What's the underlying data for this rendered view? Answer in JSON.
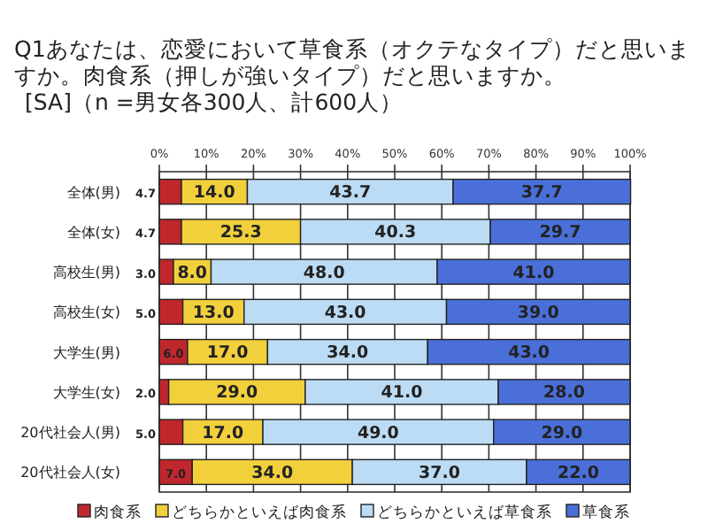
{
  "chart_data": {
    "type": "bar",
    "orientation": "horizontal",
    "stacked": true,
    "title": "Q1あなたは、恋愛において草食系（オクテなタイプ）だと思いますか。肉食系（押しが強いタイプ）だと思いますか。",
    "subtitle": "[SA]（n =男女各300人、計600人）",
    "categories": [
      "全体(男)",
      "全体(女)",
      "高校生(男)",
      "高校生(女)",
      "大学生(男)",
      "大学生(女)",
      "20代社会人(男)",
      "20代社会人(女)"
    ],
    "xlim": [
      0,
      100
    ],
    "xticks": [
      {
        "value": 0,
        "label": "0%"
      },
      {
        "value": 10,
        "label": "10%"
      },
      {
        "value": 20,
        "label": "20%"
      },
      {
        "value": 30,
        "label": "30%"
      },
      {
        "value": 40,
        "label": "40%"
      },
      {
        "value": 50,
        "label": "50%"
      },
      {
        "value": 60,
        "label": "60%"
      },
      {
        "value": 70,
        "label": "70%"
      },
      {
        "value": 80,
        "label": "80%"
      },
      {
        "value": 90,
        "label": "90%"
      },
      {
        "value": 100,
        "label": "100%"
      }
    ],
    "grid": "x",
    "legend": "bottom",
    "series": [
      {
        "name": "肉食系",
        "color": "#c0272d",
        "values": [
          4.7,
          4.7,
          3.0,
          5.0,
          6.0,
          2.0,
          5.0,
          7.0
        ],
        "value_labels": [
          "4.7",
          "4.7",
          "3.0",
          "5.0",
          "6.0",
          "2.0",
          "5.0",
          "7.0"
        ]
      },
      {
        "name": "どちらかといえば肉食系",
        "color": "#f2d03c",
        "values": [
          14.0,
          25.3,
          8.0,
          13.0,
          17.0,
          29.0,
          17.0,
          34.0
        ],
        "value_labels": [
          "14.0",
          "25.3",
          "8.0",
          "13.0",
          "17.0",
          "29.0",
          "17.0",
          "34.0"
        ]
      },
      {
        "name": "どちらかといえば草食系",
        "color": "#bcdcf5",
        "values": [
          43.7,
          40.3,
          48.0,
          43.0,
          34.0,
          41.0,
          49.0,
          37.0
        ],
        "value_labels": [
          "43.7",
          "40.3",
          "48.0",
          "43.0",
          "34.0",
          "41.0",
          "49.0",
          "37.0"
        ]
      },
      {
        "name": "草食系",
        "color": "#4a6fd8",
        "values": [
          37.7,
          29.7,
          41.0,
          39.0,
          43.0,
          28.0,
          29.0,
          22.0
        ],
        "value_labels": [
          "37.7",
          "29.7",
          "41.0",
          "39.0",
          "43.0",
          "28.0",
          "29.0",
          "22.0"
        ]
      }
    ]
  }
}
